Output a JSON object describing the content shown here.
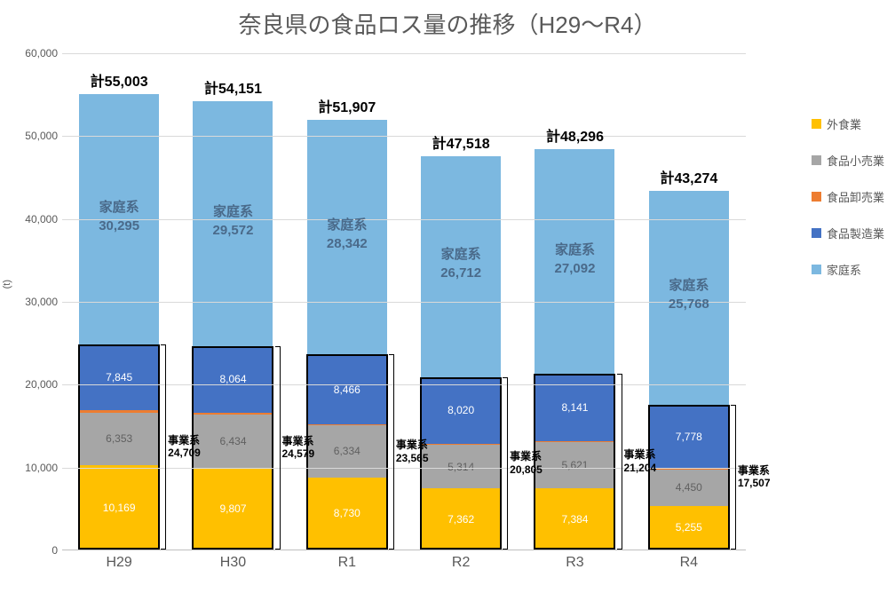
{
  "title": "奈良県の食品ロス量の推移（H29～R4）",
  "y_axis": {
    "min": 0,
    "max": 60000,
    "step": 10000,
    "ticks": [
      "0",
      "10,000",
      "20,000",
      "30,000",
      "40,000",
      "50,000",
      "60,000"
    ],
    "unit_label": "(t)"
  },
  "colors": {
    "gaishoku": "#ffc000",
    "kouri": "#a6a6a6",
    "oroshi": "#ed7d31",
    "seizou": "#4472c4",
    "katei": "#7cb8e0",
    "seg_text_light": "#ffffff",
    "seg_text_gray": "#606060",
    "grid": "#d9d9d9",
    "axis_text": "#595959"
  },
  "legend": [
    {
      "label": "外食業",
      "color": "#ffc000"
    },
    {
      "label": "食品小売業",
      "color": "#a6a6a6"
    },
    {
      "label": "食品卸売業",
      "color": "#ed7d31"
    },
    {
      "label": "食品製造業",
      "color": "#4472c4"
    },
    {
      "label": "家庭系",
      "color": "#7cb8e0"
    }
  ],
  "business_label_prefix": "事業系",
  "total_prefix": "計",
  "katei_prefix": "家庭系",
  "categories": [
    "H29",
    "H30",
    "R1",
    "R2",
    "R3",
    "R4"
  ],
  "series": [
    {
      "name": "H29",
      "total": 55003,
      "total_str": "55,003",
      "katei": 30295,
      "katei_str": "30,295",
      "business_total": 24709,
      "business_str": "24,709",
      "segments": [
        {
          "key": "gaishoku",
          "value": 10169,
          "label": "10,169",
          "textcolor": "#ffffff"
        },
        {
          "key": "kouri",
          "value": 6353,
          "label": "6,353",
          "textcolor": "#606060"
        },
        {
          "key": "oroshi",
          "value": 342,
          "label": "342",
          "textcolor": "#606060",
          "labelOffsetY": -1
        },
        {
          "key": "seizou",
          "value": 7845,
          "label": "7,845",
          "textcolor": "#ffffff"
        },
        {
          "key": "katei",
          "value": 30295,
          "label": "",
          "textcolor": "#ffffff"
        }
      ]
    },
    {
      "name": "H30",
      "total": 54151,
      "total_str": "54,151",
      "katei": 29572,
      "katei_str": "29,572",
      "business_total": 24579,
      "business_str": "24,579",
      "segments": [
        {
          "key": "gaishoku",
          "value": 9807,
          "label": "9,807",
          "textcolor": "#ffffff"
        },
        {
          "key": "kouri",
          "value": 6434,
          "label": "6,434",
          "textcolor": "#606060"
        },
        {
          "key": "oroshi",
          "value": 274,
          "label": "274",
          "textcolor": "#606060",
          "labelOffsetY": -1
        },
        {
          "key": "seizou",
          "value": 8064,
          "label": "8,064",
          "textcolor": "#ffffff"
        },
        {
          "key": "katei",
          "value": 29572,
          "label": "",
          "textcolor": "#ffffff"
        }
      ]
    },
    {
      "name": "R1",
      "total": 51907,
      "total_str": "51,907",
      "katei": 28342,
      "katei_str": "28,342",
      "business_total": 23565,
      "business_str": "23,565",
      "segments": [
        {
          "key": "gaishoku",
          "value": 8730,
          "label": "8,730",
          "textcolor": "#ffffff"
        },
        {
          "key": "kouri",
          "value": 6334,
          "label": "6,334",
          "textcolor": "#606060"
        },
        {
          "key": "oroshi",
          "value": 35,
          "label": "35",
          "textcolor": "#606060",
          "labelOffsetY": -1
        },
        {
          "key": "seizou",
          "value": 8466,
          "label": "8,466",
          "textcolor": "#ffffff"
        },
        {
          "key": "katei",
          "value": 28342,
          "label": "",
          "textcolor": "#ffffff"
        }
      ]
    },
    {
      "name": "R2",
      "total": 47518,
      "total_str": "47,518",
      "katei": 26712,
      "katei_str": "26,712",
      "business_total": 20805,
      "business_str": "20,805",
      "segments": [
        {
          "key": "gaishoku",
          "value": 7362,
          "label": "7,362",
          "textcolor": "#ffffff"
        },
        {
          "key": "kouri",
          "value": 5314,
          "label": "5,314",
          "textcolor": "#606060"
        },
        {
          "key": "oroshi",
          "value": 109,
          "label": "109",
          "textcolor": "#606060",
          "labelOffsetY": -1
        },
        {
          "key": "seizou",
          "value": 8020,
          "label": "8,020",
          "textcolor": "#ffffff"
        },
        {
          "key": "katei",
          "value": 26712,
          "label": "",
          "textcolor": "#ffffff"
        }
      ]
    },
    {
      "name": "R3",
      "total": 48296,
      "total_str": "48,296",
      "katei": 27092,
      "katei_str": "27,092",
      "business_total": 21204,
      "business_str": "21,204",
      "segments": [
        {
          "key": "gaishoku",
          "value": 7384,
          "label": "7,384",
          "textcolor": "#ffffff"
        },
        {
          "key": "kouri",
          "value": 5621,
          "label": "5,621",
          "textcolor": "#606060"
        },
        {
          "key": "oroshi",
          "value": 58,
          "label": "58",
          "textcolor": "#606060",
          "labelOffsetY": -1
        },
        {
          "key": "seizou",
          "value": 8141,
          "label": "8,141",
          "textcolor": "#ffffff"
        },
        {
          "key": "katei",
          "value": 27092,
          "label": "",
          "textcolor": "#ffffff"
        }
      ]
    },
    {
      "name": "R4",
      "total": 43274,
      "total_str": "43,274",
      "katei": 25768,
      "katei_str": "25,768",
      "business_total": 17507,
      "business_str": "17,507",
      "segments": [
        {
          "key": "gaishoku",
          "value": 5255,
          "label": "5,255",
          "textcolor": "#ffffff"
        },
        {
          "key": "kouri",
          "value": 4450,
          "label": "4,450",
          "textcolor": "#606060"
        },
        {
          "key": "oroshi",
          "value": 24,
          "label": "24",
          "textcolor": "#606060",
          "labelOffsetY": -1
        },
        {
          "key": "seizou",
          "value": 7778,
          "label": "7,778",
          "textcolor": "#ffffff"
        },
        {
          "key": "katei",
          "value": 25768,
          "label": "",
          "textcolor": "#ffffff"
        }
      ]
    }
  ]
}
